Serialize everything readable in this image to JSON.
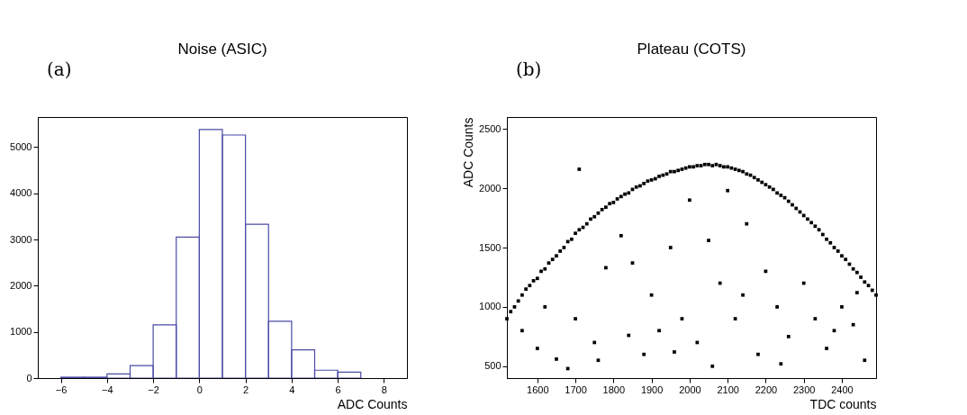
{
  "chart_data": [
    {
      "type": "histogram",
      "title": "Noise (ASIC)",
      "xlabel": "ADC Counts",
      "annotations": [
        "(a)"
      ],
      "bins": [
        -6,
        -5,
        -4,
        -3,
        -2,
        -1,
        0,
        1,
        2,
        3,
        4,
        5,
        6,
        7
      ],
      "values": [
        20,
        20,
        90,
        270,
        1150,
        3050,
        5380,
        5260,
        3330,
        1230,
        610,
        170,
        130
      ],
      "color": "#4b4ba6",
      "xlim": [
        -7,
        9
      ],
      "xticks": [
        -6,
        -4,
        -2,
        0,
        2,
        4,
        6,
        8
      ],
      "ylim": [
        0,
        5650
      ],
      "yticks": [
        0,
        1000,
        2000,
        3000,
        4000,
        5000
      ],
      "grid": false
    },
    {
      "type": "scatter",
      "title": "Plateau (COTS)",
      "xlabel": "TDC counts",
      "ylabel": "ADC Counts",
      "annotations": [
        "(b)"
      ],
      "marker": "square",
      "x": [
        1520,
        1530,
        1540,
        1550,
        1560,
        1570,
        1580,
        1590,
        1600,
        1610,
        1620,
        1630,
        1640,
        1650,
        1660,
        1670,
        1680,
        1690,
        1700,
        1710,
        1720,
        1730,
        1740,
        1750,
        1760,
        1770,
        1780,
        1790,
        1800,
        1810,
        1820,
        1830,
        1840,
        1850,
        1860,
        1870,
        1880,
        1890,
        1900,
        1910,
        1920,
        1930,
        1940,
        1950,
        1960,
        1970,
        1980,
        1990,
        2000,
        2010,
        2020,
        2030,
        2040,
        2050,
        2060,
        2070,
        2080,
        2090,
        2100,
        2110,
        2120,
        2130,
        2140,
        2150,
        2160,
        2170,
        2180,
        2190,
        2200,
        2210,
        2220,
        2230,
        2240,
        2250,
        2260,
        2270,
        2280,
        2290,
        2300,
        2310,
        2320,
        2330,
        2340,
        2350,
        2360,
        2370,
        2380,
        2390,
        2400,
        2410,
        2420,
        2430,
        2440,
        2450,
        2460,
        2470,
        2480,
        2490,
        1560,
        1600,
        1650,
        1700,
        1750,
        1780,
        1820,
        1850,
        1880,
        1900,
        1920,
        1950,
        1980,
        2000,
        2020,
        2050,
        2080,
        2100,
        2120,
        2150,
        2180,
        2200,
        2230,
        2260,
        2300,
        2330,
        2360,
        2400,
        2430,
        2460,
        1620,
        1680,
        1760,
        1840,
        1960,
        2060,
        2140,
        2240,
        2380,
        2440,
        1710
      ],
      "series": [
        {
          "color": "#000000",
          "values": [
            900,
            960,
            1000,
            1050,
            1100,
            1150,
            1180,
            1220,
            1240,
            1300,
            1320,
            1370,
            1400,
            1430,
            1470,
            1500,
            1550,
            1570,
            1620,
            1650,
            1670,
            1700,
            1740,
            1760,
            1790,
            1820,
            1840,
            1870,
            1880,
            1910,
            1930,
            1950,
            1960,
            1990,
            2010,
            2020,
            2040,
            2060,
            2070,
            2080,
            2100,
            2110,
            2120,
            2140,
            2140,
            2150,
            2160,
            2170,
            2180,
            2180,
            2190,
            2190,
            2200,
            2200,
            2190,
            2200,
            2190,
            2180,
            2180,
            2170,
            2160,
            2150,
            2140,
            2120,
            2110,
            2090,
            2070,
            2050,
            2030,
            2010,
            1990,
            1960,
            1940,
            1920,
            1890,
            1860,
            1830,
            1800,
            1770,
            1740,
            1710,
            1680,
            1650,
            1610,
            1570,
            1540,
            1500,
            1470,
            1430,
            1400,
            1360,
            1320,
            1290,
            1250,
            1210,
            1180,
            1140,
            1100,
            800,
            650,
            560,
            900,
            700,
            1330,
            1600,
            1370,
            600,
            1100,
            800,
            1500,
            900,
            1900,
            700,
            1560,
            1200,
            1980,
            900,
            1700,
            600,
            1300,
            1000,
            750,
            1200,
            900,
            650,
            1000,
            850,
            550,
            1000,
            480,
            550,
            760,
            620,
            500,
            1100,
            520,
            800,
            1120,
            2160
          ]
        }
      ],
      "xlim": [
        1520,
        2490
      ],
      "xticks": [
        1600,
        1700,
        1800,
        1900,
        2000,
        2100,
        2200,
        2300,
        2400
      ],
      "ylim": [
        400,
        2600
      ],
      "yticks": [
        500,
        1000,
        1500,
        2000,
        2500
      ],
      "grid": false
    }
  ]
}
